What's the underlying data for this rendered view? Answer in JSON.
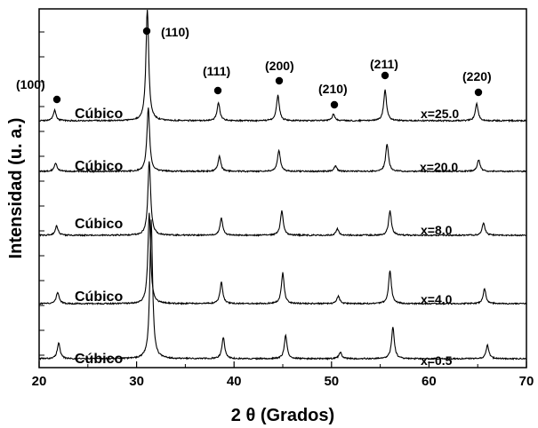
{
  "chart_data": {
    "type": "line",
    "xlabel": "2 θ (Grados)",
    "ylabel": "Intensidad (u. a.)",
    "xlim": [
      20,
      70
    ],
    "xticks": [
      20,
      30,
      40,
      50,
      60,
      70
    ],
    "x_tick_labels": [
      "20",
      "30",
      "40",
      "50",
      "60",
      "70"
    ],
    "y_ticks_labeled": false,
    "grid": false,
    "series": [
      {
        "composition": "x=0.5",
        "phase": "Cúbico",
        "baseline": 0.0,
        "peaks": [
          {
            "x": 22.0,
            "h": 0.3
          },
          {
            "x": 31.5,
            "h": 2.6
          },
          {
            "x": 38.9,
            "h": 0.4
          },
          {
            "x": 45.3,
            "h": 0.44
          },
          {
            "x": 50.9,
            "h": 0.12
          },
          {
            "x": 56.3,
            "h": 0.6
          },
          {
            "x": 66.0,
            "h": 0.26
          }
        ]
      },
      {
        "composition": "x=4.0",
        "phase": "Cúbico",
        "baseline": 1.0,
        "peaks": [
          {
            "x": 21.9,
            "h": 0.22
          },
          {
            "x": 31.3,
            "h": 1.7
          },
          {
            "x": 38.7,
            "h": 0.4
          },
          {
            "x": 45.0,
            "h": 0.58
          },
          {
            "x": 50.7,
            "h": 0.14
          },
          {
            "x": 56.0,
            "h": 0.62
          },
          {
            "x": 65.7,
            "h": 0.28
          }
        ]
      },
      {
        "composition": "x=8.0",
        "phase": "Cúbico",
        "baseline": 2.0,
        "peaks": [
          {
            "x": 21.8,
            "h": 0.18
          },
          {
            "x": 31.3,
            "h": 1.4
          },
          {
            "x": 38.7,
            "h": 0.32
          },
          {
            "x": 44.9,
            "h": 0.46
          },
          {
            "x": 50.6,
            "h": 0.12
          },
          {
            "x": 56.0,
            "h": 0.46
          },
          {
            "x": 65.6,
            "h": 0.24
          }
        ]
      },
      {
        "composition": "x=20.0",
        "phase": "Cúbico",
        "baseline": 3.0,
        "peaks": [
          {
            "x": 21.7,
            "h": 0.16
          },
          {
            "x": 31.2,
            "h": 1.2
          },
          {
            "x": 38.5,
            "h": 0.28
          },
          {
            "x": 44.6,
            "h": 0.4
          },
          {
            "x": 50.4,
            "h": 0.1
          },
          {
            "x": 55.7,
            "h": 0.52
          },
          {
            "x": 65.1,
            "h": 0.22
          }
        ]
      },
      {
        "composition": "x=25.0",
        "phase": "Cúbico",
        "baseline": 4.0,
        "peaks": [
          {
            "x": 21.6,
            "h": 0.2
          },
          {
            "x": 31.1,
            "h": 2.1
          },
          {
            "x": 38.4,
            "h": 0.34
          },
          {
            "x": 44.5,
            "h": 0.48
          },
          {
            "x": 50.2,
            "h": 0.12
          },
          {
            "x": 55.5,
            "h": 0.58
          },
          {
            "x": 64.9,
            "h": 0.32
          }
        ]
      }
    ],
    "annotations": [
      {
        "text": "(100)",
        "x": 21.6
      },
      {
        "text": "(110)",
        "x": 31.1
      },
      {
        "text": "(111)",
        "x": 38.4
      },
      {
        "text": "(200)",
        "x": 44.5
      },
      {
        "text": "(210)",
        "x": 50.2
      },
      {
        "text": "(211)",
        "x": 55.5
      },
      {
        "text": "(220)",
        "x": 64.9
      }
    ],
    "marker": "filled-circle",
    "line_color": "#000000"
  }
}
